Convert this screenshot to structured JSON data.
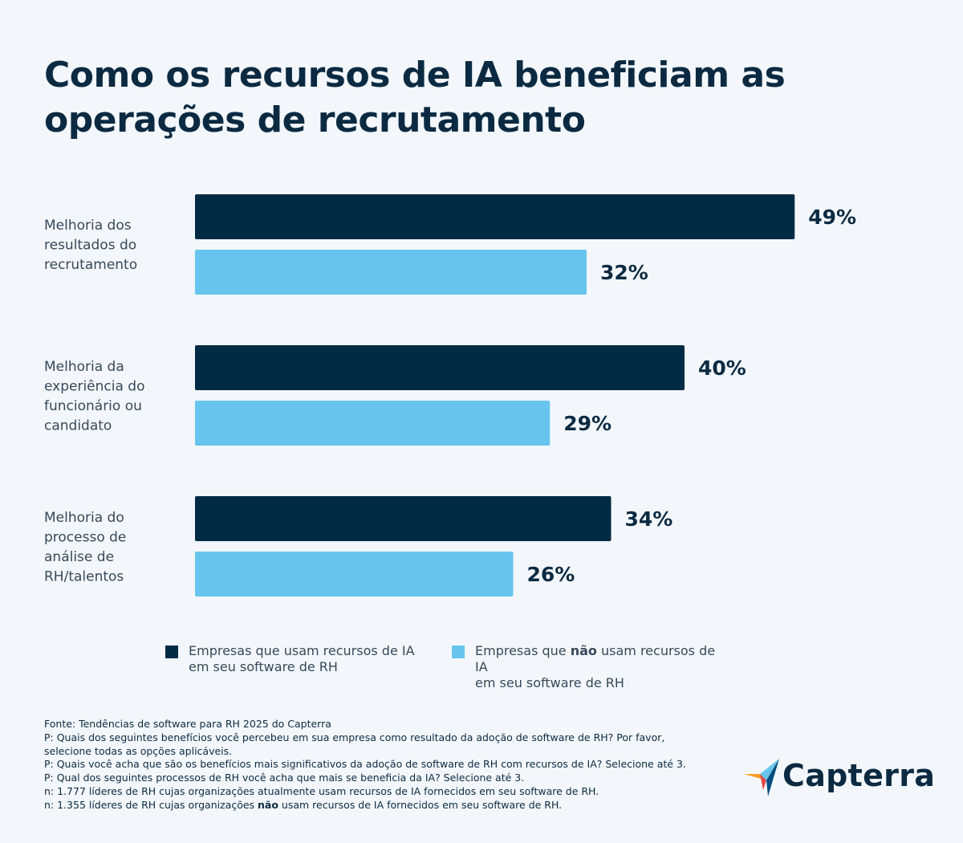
{
  "title_lines": [
    "Como os recursos de IA beneficiam as",
    "operações de recrutamento"
  ],
  "chart_data": {
    "type": "bar",
    "orientation": "horizontal",
    "categories": [
      [
        "Melhoria dos",
        "resultados do",
        "recrutamento"
      ],
      [
        "Melhoria da",
        "experiência do",
        "funcionário ou",
        "candidato"
      ],
      [
        "Melhoria do",
        "processo de",
        "análise de",
        "RH/talentos"
      ]
    ],
    "series": [
      {
        "values": [
          49,
          40,
          34
        ],
        "color": "#002b45"
      },
      {
        "values": [
          32,
          29,
          26
        ],
        "color": "#67c5ed"
      }
    ],
    "value_labels": [
      [
        "49%",
        "40%",
        "34%"
      ],
      [
        "32%",
        "29%",
        "26%"
      ]
    ],
    "xlim": [
      0,
      60
    ],
    "grid": false,
    "legend_position": "bottom"
  },
  "legend": [
    {
      "line1": "Empresas que usam recursos de IA",
      "line2": "em seu software de RH",
      "color": "#002b45"
    },
    {
      "line1_before": "Empresas que ",
      "line1_bold": "não",
      "line1_after": " usam recursos de IA",
      "line2": "em seu software de RH",
      "color": "#67c5ed"
    }
  ],
  "footer": {
    "lines": [
      "Fonte: Tendências de software para RH 2025 do Capterra",
      "P: Quais dos seguintes benefícios você percebeu em sua empresa como resultado da adoção de software de RH? Por favor,",
      "selecione todas as opções aplicáveis.",
      "P: Quais você acha que são os benefícios mais significativos da adoção de software de RH com recursos de IA? Selecione até 3.",
      "P: Qual dos seguintes processos de RH você acha que mais se beneficia da IA? Selecione até 3.",
      "n: 1.777 líderes de RH cujas organizações atualmente usam recursos de IA fornecidos em seu software de RH."
    ],
    "last_before": "n: 1.355 líderes de RH cujas organizações ",
    "last_bold": "não",
    "last_after": " usam recursos de IA fornecidos em seu software de RH."
  },
  "logo": {
    "text": "Capterra",
    "colors": [
      "#ff9d28",
      "#68c5ed",
      "#044d80",
      "#e54747"
    ]
  }
}
